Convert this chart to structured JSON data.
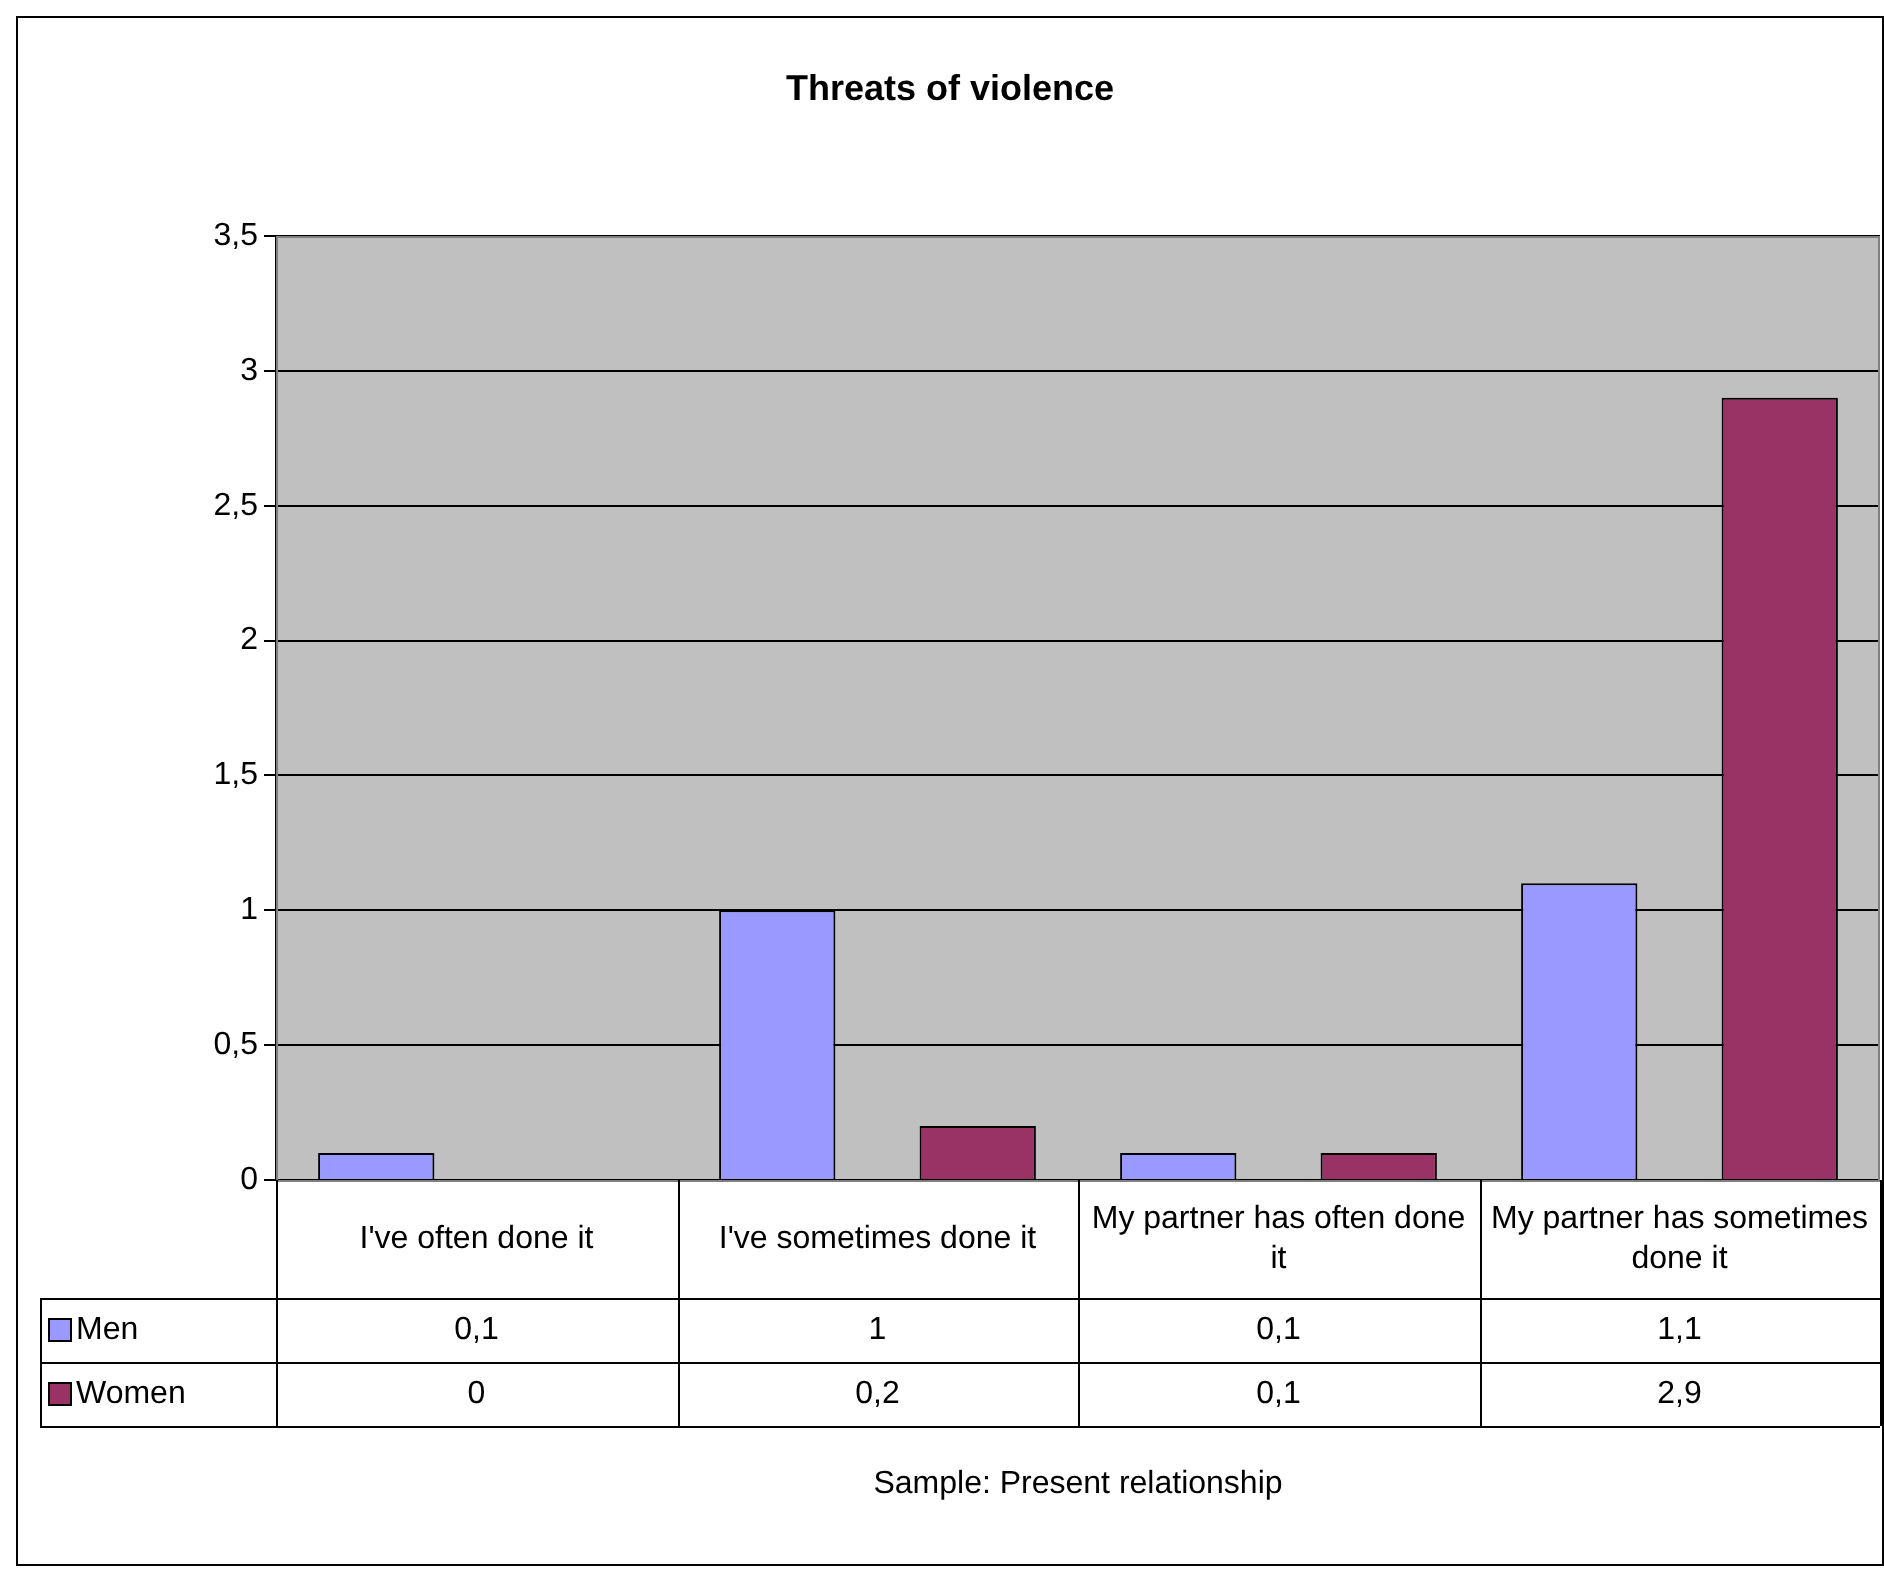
{
  "chart_data": {
    "type": "bar",
    "title": "Threats of violence",
    "categories": [
      "I've often done it",
      "I've sometimes done it",
      "My partner has often done it",
      "My partner has sometimes done it"
    ],
    "series": [
      {
        "name": "Men",
        "color": "#9999ff",
        "values": [
          0.1,
          1,
          0.1,
          1.1
        ],
        "value_labels": [
          "0,1",
          "1",
          "0,1",
          "1,1"
        ]
      },
      {
        "name": "Women",
        "color": "#993366",
        "values": [
          0,
          0.2,
          0.1,
          2.9
        ],
        "value_labels": [
          "0",
          "0,2",
          "0,1",
          "2,9"
        ]
      }
    ],
    "ylim": [
      0,
      3.5
    ],
    "yticks": [
      0,
      {
        "value": 0.5,
        "label": "0,5"
      },
      1,
      {
        "value": 1.5,
        "label": "1,5"
      },
      2,
      {
        "value": 2.5,
        "label": "2,5"
      },
      3,
      {
        "value": 3.5,
        "label": "3,5"
      }
    ],
    "grid": "y",
    "legend": "bottom",
    "annotations": [
      "Sample: Present relationship"
    ]
  }
}
